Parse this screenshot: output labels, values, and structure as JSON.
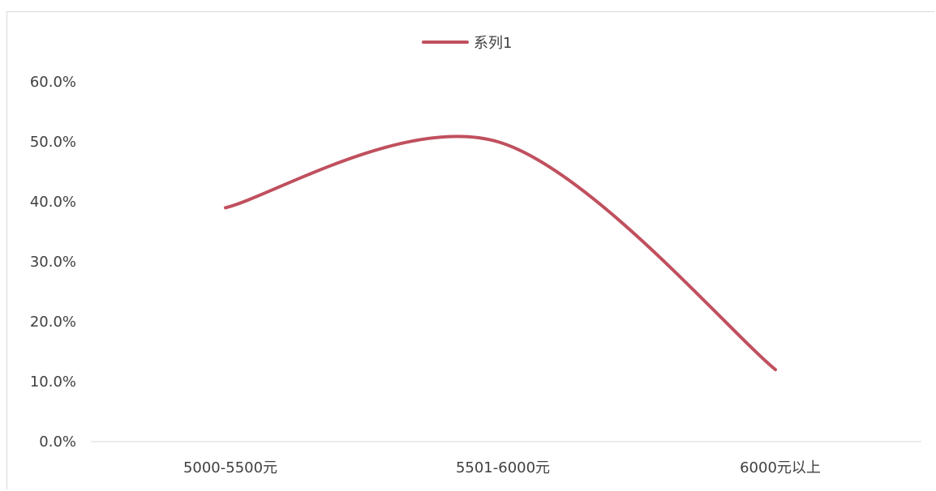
{
  "chart_data": {
    "type": "line",
    "categories": [
      "5000-5500元",
      "5501-6000元",
      "6000元以上"
    ],
    "series": [
      {
        "name": "系列1",
        "values": [
          0.39,
          0.5,
          0.12
        ]
      }
    ],
    "y_ticks": [
      "0.0%",
      "10.0%",
      "20.0%",
      "30.0%",
      "40.0%",
      "50.0%",
      "60.0%"
    ],
    "ylim": [
      0,
      0.6
    ],
    "smooth": true,
    "grid": false,
    "legend_position": "top-center",
    "colors": {
      "series": "#c0505e",
      "axis": "#d9d9d9",
      "text": "#404040"
    }
  }
}
